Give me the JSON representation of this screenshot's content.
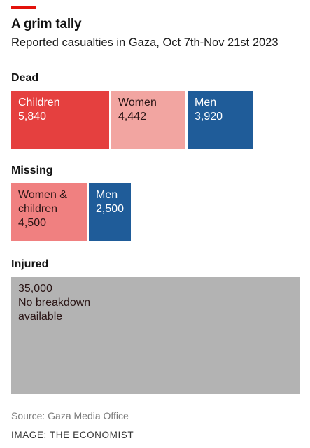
{
  "title": "A grim tally",
  "subtitle": "Reported casualties in Gaza, Oct 7th-Nov 21st 2023",
  "source": "Source: Gaza Media Office",
  "credit": "IMAGE: THE ECONOMIST",
  "colors": {
    "accent": "#e3120b",
    "children": "#e5403f",
    "women": "#f2a5a1",
    "men": "#1f5c99",
    "women_children": "#f08080",
    "injured": "#b3b3b3"
  },
  "chart_data": {
    "type": "treemap",
    "groups": [
      {
        "name": "Dead",
        "items": [
          {
            "label": "Children",
            "value": 5840,
            "value_text": "5,840",
            "color": "#e5403f",
            "text": "dark"
          },
          {
            "label": "Women",
            "value": 4442,
            "value_text": "4,442",
            "color": "#f2a5a1",
            "text": "light"
          },
          {
            "label": "Men",
            "value": 3920,
            "value_text": "3,920",
            "color": "#1f5c99",
            "text": "dark"
          }
        ]
      },
      {
        "name": "Missing",
        "items": [
          {
            "label": "Women & children",
            "label_lines": [
              "Women &",
              "children"
            ],
            "value": 4500,
            "value_text": "4,500",
            "color": "#f08080",
            "text": "light"
          },
          {
            "label": "Men",
            "value": 2500,
            "value_text": "2,500",
            "color": "#1f5c99",
            "text": "dark"
          }
        ]
      },
      {
        "name": "Injured",
        "items": [
          {
            "label": "No breakdown available",
            "label_lines": [
              "No breakdown",
              "available"
            ],
            "value": 35000,
            "value_text": "35,000",
            "color": "#b3b3b3",
            "text": "light",
            "value_first": true
          }
        ]
      }
    ]
  }
}
